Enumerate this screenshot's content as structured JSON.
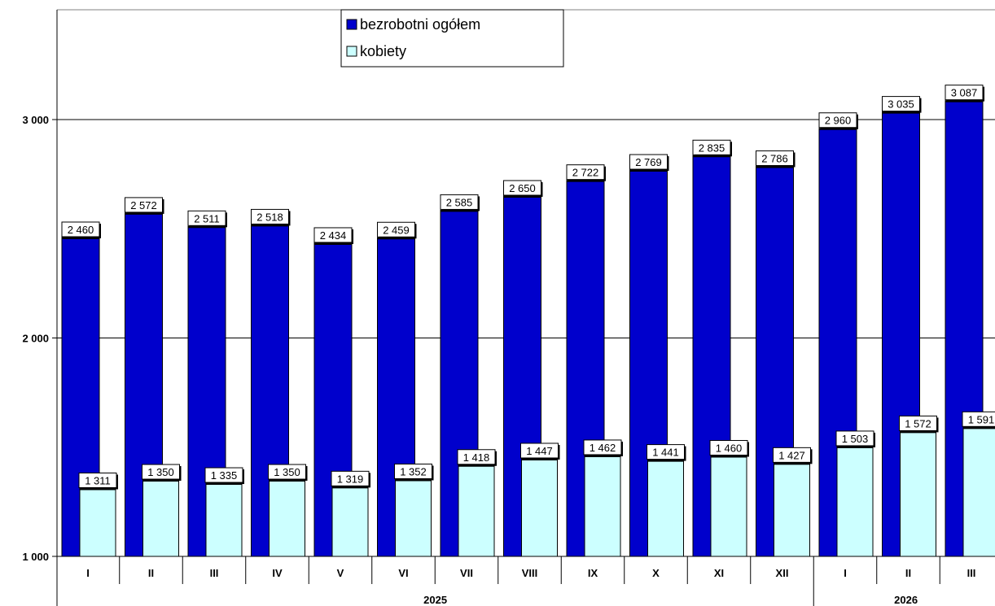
{
  "chart_data": {
    "type": "bar",
    "categories": [
      "I",
      "II",
      "III",
      "IV",
      "V",
      "VI",
      "VII",
      "VIII",
      "IX",
      "X",
      "XI",
      "XII",
      "I",
      "II",
      "III"
    ],
    "groups": [
      {
        "label": "2025",
        "count": 12
      },
      {
        "label": "2026",
        "count": 3
      }
    ],
    "series": [
      {
        "name": "bezrobotni ogółem",
        "color": "#0000CC",
        "values": [
          2460,
          2572,
          2511,
          2518,
          2434,
          2459,
          2585,
          2650,
          2722,
          2769,
          2835,
          2786,
          2960,
          3035,
          3087
        ],
        "labels": [
          "2 460",
          "2 572",
          "2 511",
          "2 518",
          "2 434",
          "2 459",
          "2 585",
          "2 650",
          "2 722",
          "2 769",
          "2 835",
          "2 786",
          "2 960",
          "3 035",
          "3 087"
        ]
      },
      {
        "name": "kobiety",
        "color": "#CCFFFF",
        "values": [
          1311,
          1350,
          1335,
          1350,
          1319,
          1352,
          1418,
          1447,
          1462,
          1441,
          1460,
          1427,
          1503,
          1572,
          1591
        ],
        "labels": [
          "1 311",
          "1 350",
          "1 335",
          "1 350",
          "1 319",
          "1 352",
          "1 418",
          "1 447",
          "1 462",
          "1 441",
          "1 460",
          "1 427",
          "1 503",
          "1 572",
          "1 591"
        ]
      }
    ],
    "yticks": [
      1000,
      2000,
      3000
    ],
    "ytick_labels": [
      "1 000",
      "2 000",
      "3 000"
    ],
    "ylim": [
      1000,
      3500
    ],
    "grid": true,
    "legend": "top-center"
  }
}
